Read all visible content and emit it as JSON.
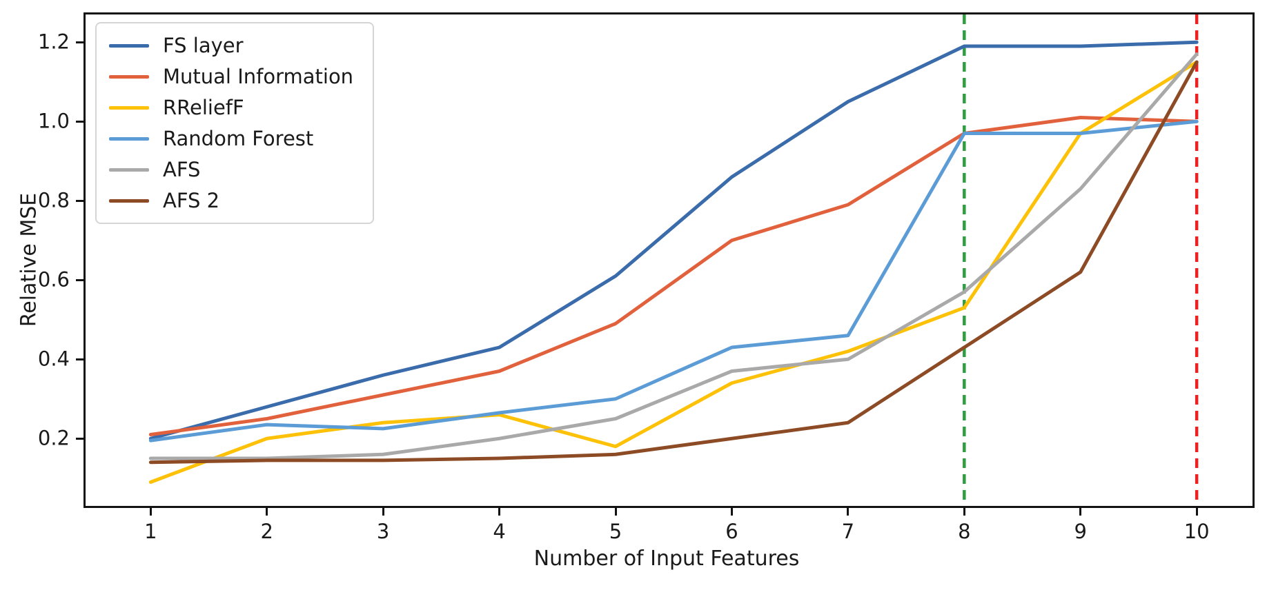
{
  "figure": {
    "background": "#ffffff",
    "axis_color": "#121212"
  },
  "chart_data": {
    "type": "line",
    "title": "",
    "xlabel": "Number of Input Features",
    "ylabel": "Relative MSE",
    "grid": false,
    "legend_position": "upper-left",
    "x": [
      1,
      2,
      3,
      4,
      5,
      6,
      7,
      8,
      9,
      10
    ],
    "x_tick_labels": [
      "1",
      "2",
      "3",
      "4",
      "5",
      "6",
      "7",
      "8",
      "9",
      "10"
    ],
    "y_ticks": [
      0.2,
      0.4,
      0.6,
      0.8,
      1.0,
      1.2
    ],
    "y_tick_labels": [
      "0.2",
      "0.4",
      "0.6",
      "0.8",
      "1.0",
      "1.2"
    ],
    "xlim": [
      0.44,
      10.48
    ],
    "ylim": [
      0.03,
      1.27
    ],
    "line_width": 5,
    "series": [
      {
        "name": "FS layer",
        "color": "#3a6bab",
        "values": [
          0.2,
          0.28,
          0.36,
          0.43,
          0.61,
          0.86,
          1.05,
          1.19,
          1.19,
          1.2
        ]
      },
      {
        "name": "Mutual Information",
        "color": "#e2613d",
        "values": [
          0.21,
          0.25,
          0.31,
          0.37,
          0.49,
          0.7,
          0.79,
          0.97,
          1.01,
          1.0
        ]
      },
      {
        "name": "RReliefF",
        "color": "#fdc107",
        "values": [
          0.09,
          0.2,
          0.24,
          0.26,
          0.18,
          0.34,
          0.42,
          0.53,
          0.97,
          1.15
        ]
      },
      {
        "name": "Random Forest",
        "color": "#5c9cd6",
        "values": [
          0.195,
          0.235,
          0.225,
          0.265,
          0.3,
          0.43,
          0.46,
          0.97,
          0.97,
          1.0
        ]
      },
      {
        "name": "AFS",
        "color": "#a9a9a9",
        "values": [
          0.15,
          0.15,
          0.16,
          0.2,
          0.25,
          0.37,
          0.4,
          0.57,
          0.83,
          1.17
        ]
      },
      {
        "name": "AFS 2",
        "color": "#8c4b25",
        "values": [
          0.14,
          0.145,
          0.145,
          0.15,
          0.16,
          0.2,
          0.24,
          0.43,
          0.62,
          1.15
        ]
      }
    ],
    "vlines": [
      {
        "x": 8,
        "color": "#2f9e41",
        "style": "dashed"
      },
      {
        "x": 10,
        "color": "#ec2222",
        "style": "dashed"
      }
    ]
  }
}
